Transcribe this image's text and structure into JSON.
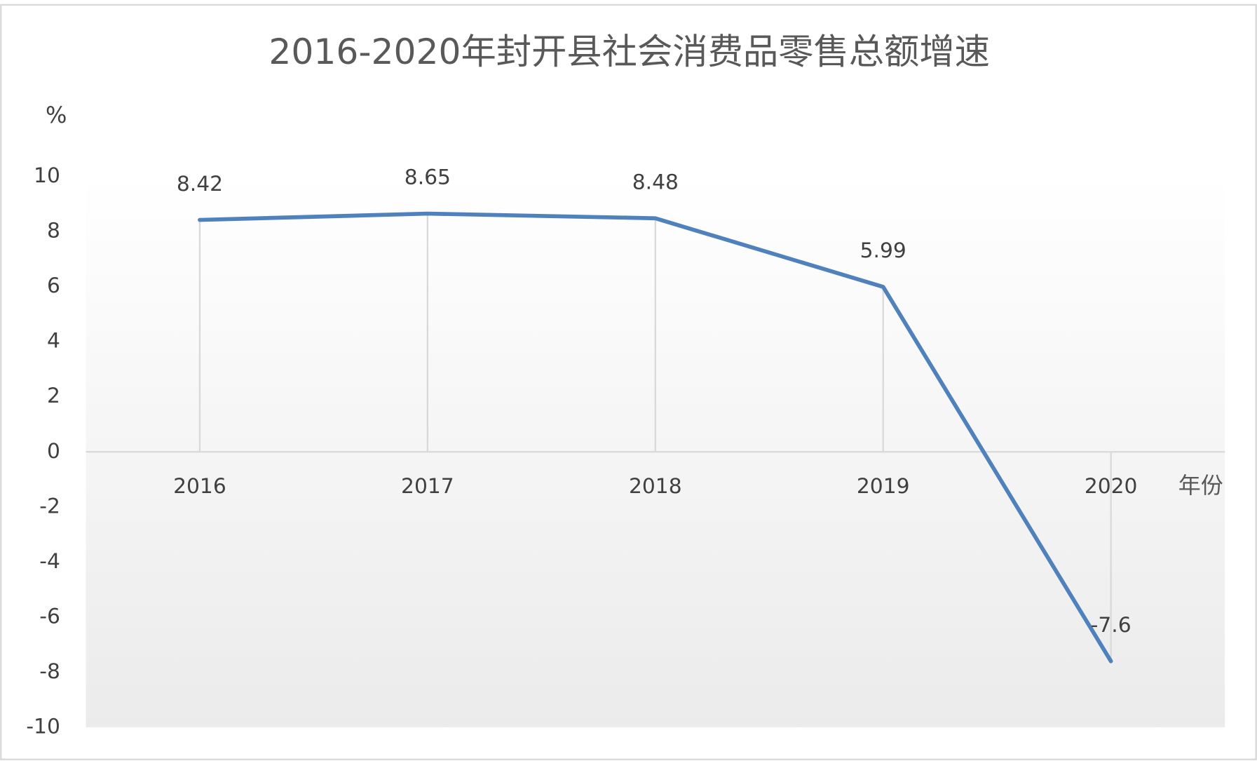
{
  "chart_data": {
    "type": "line",
    "title": "2016-2020年封开县社会消费品零售总额增速",
    "y_axis_label": "%",
    "x_axis_label": "年份",
    "categories": [
      "2016",
      "2017",
      "2018",
      "2019",
      "2020"
    ],
    "values": [
      8.42,
      8.65,
      8.48,
      5.99,
      -7.6
    ],
    "color": "#4f81bd",
    "ylim": [
      -10,
      10
    ],
    "yticks": [
      -10,
      -8,
      -6,
      -4,
      -2,
      0,
      2,
      4,
      6,
      8,
      10
    ],
    "drop_lines": true,
    "data_labels": true
  }
}
